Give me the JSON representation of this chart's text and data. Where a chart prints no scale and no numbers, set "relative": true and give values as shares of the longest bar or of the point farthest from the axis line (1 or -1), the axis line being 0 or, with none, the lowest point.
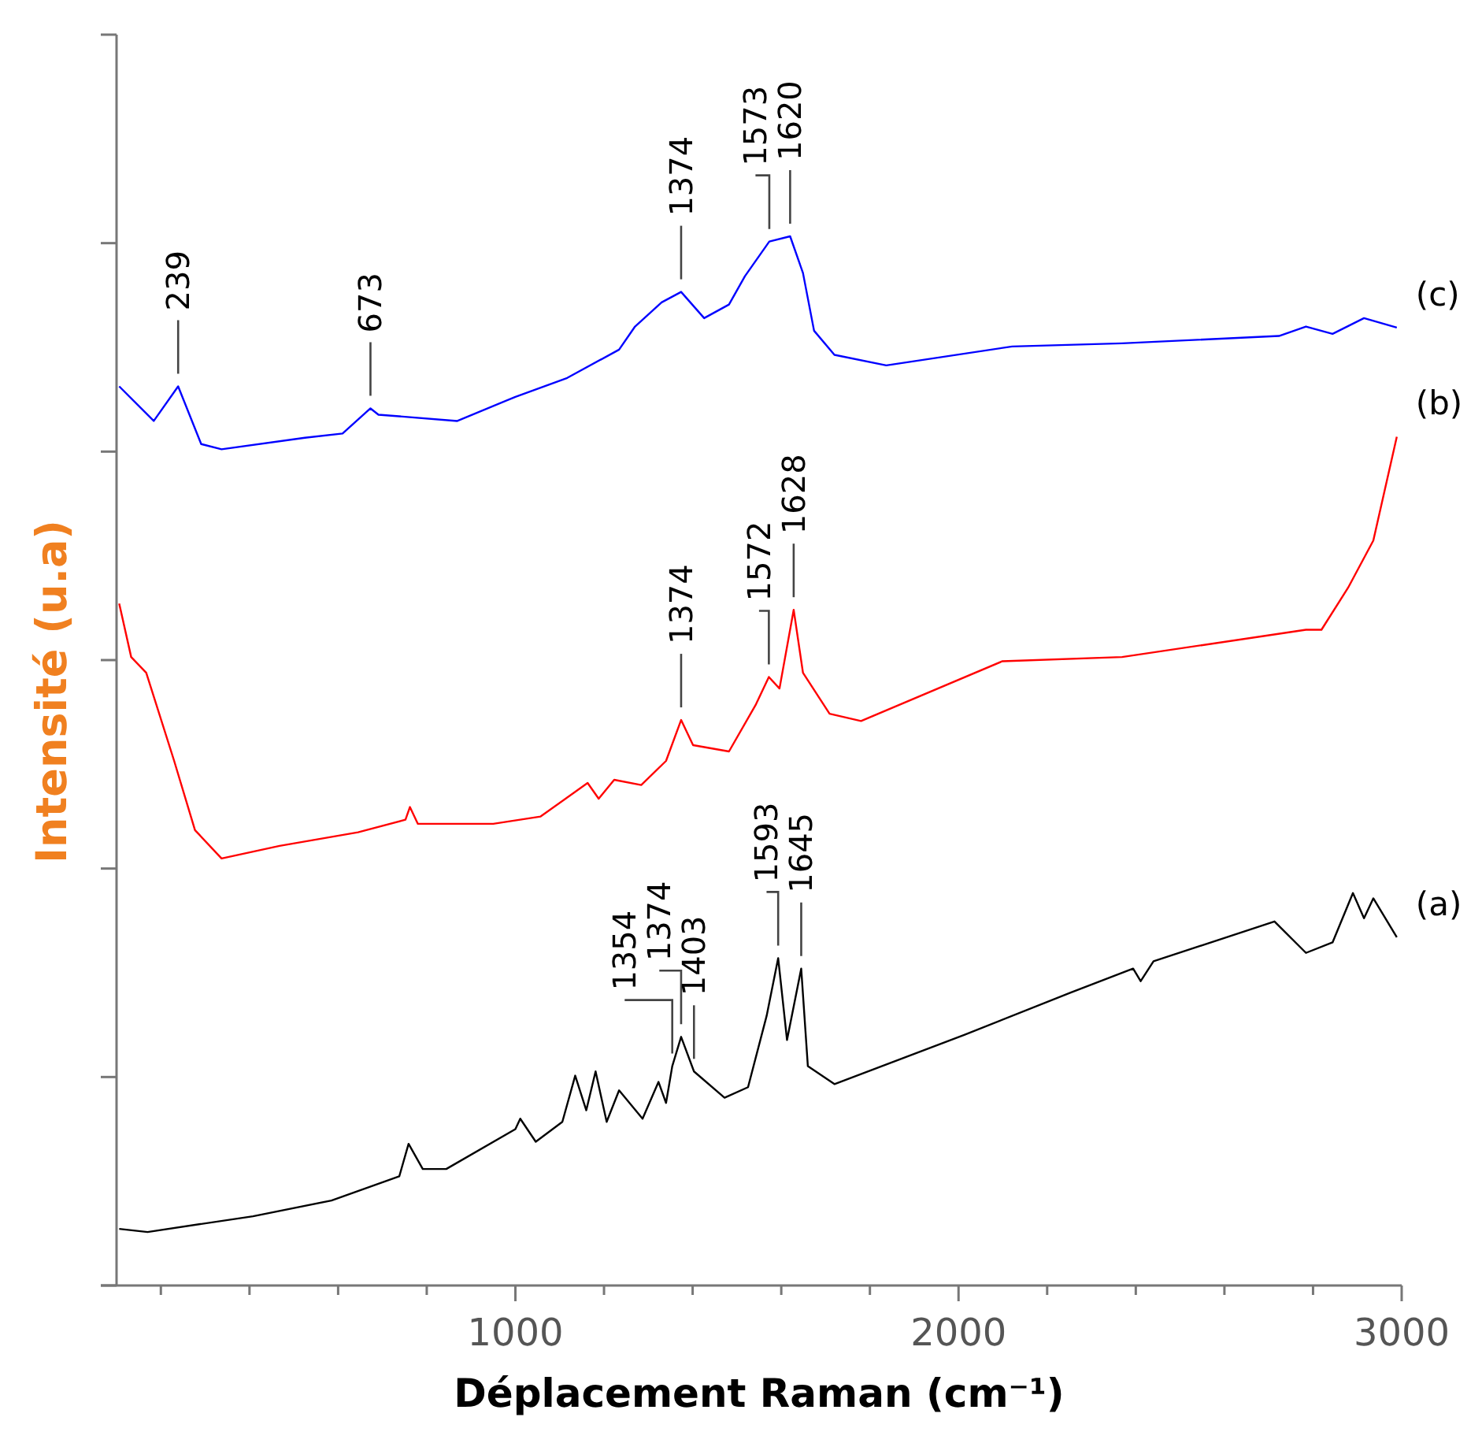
{
  "chart_data": {
    "type": "line",
    "relative": true,
    "xlabel": "Déplacement Raman (cm⁻¹)",
    "ylabel": "Intensité (u.a)",
    "xlim": [
      100,
      3000
    ],
    "xticks": [
      {
        "value": 200,
        "label": null
      },
      {
        "value": 400,
        "label": null
      },
      {
        "value": 600,
        "label": null
      },
      {
        "value": 800,
        "label": null
      },
      1000,
      {
        "value": 1200,
        "label": null
      },
      {
        "value": 1400,
        "label": null
      },
      {
        "value": 1600,
        "label": null
      },
      {
        "value": 1800,
        "label": null
      },
      2000,
      {
        "value": 2200,
        "label": null
      },
      {
        "value": 2400,
        "label": null
      },
      {
        "value": 2600,
        "label": null
      },
      {
        "value": 2800,
        "label": null
      },
      3000
    ],
    "grid": false,
    "marker": "none",
    "line_style": "solid",
    "series": [
      {
        "name": "(a)",
        "color": "#000000",
        "x": [
          106,
          170,
          408,
          585,
          738,
          759,
          791,
          844,
          1000,
          1011,
          1046,
          1106,
          1135,
          1160,
          1181,
          1206,
          1234,
          1287,
          1323,
          1340,
          1354,
          1374,
          1403,
          1472,
          1525,
          1567,
          1593,
          1613,
          1645,
          1660,
          1720,
          2014,
          2252,
          2394,
          2411,
          2440,
          2713,
          2784,
          2844,
          2890,
          2915,
          2936,
          2989
        ],
        "values": [
          0.054,
          0.051,
          0.066,
          0.081,
          0.104,
          0.135,
          0.111,
          0.111,
          0.149,
          0.159,
          0.137,
          0.156,
          0.2,
          0.167,
          0.204,
          0.156,
          0.186,
          0.159,
          0.194,
          0.174,
          0.209,
          0.237,
          0.204,
          0.179,
          0.189,
          0.257,
          0.312,
          0.234,
          0.302,
          0.209,
          0.192,
          0.239,
          0.279,
          0.302,
          0.29,
          0.309,
          0.347,
          0.317,
          0.327,
          0.374,
          0.35,
          0.369,
          0.332
        ]
      },
      {
        "name": "(b)",
        "color": "#ff0000",
        "x": [
          106,
          133,
          167,
          230,
          277,
          337,
          468,
          645,
          752,
          762,
          780,
          950,
          1057,
          1163,
          1188,
          1223,
          1284,
          1340,
          1374,
          1401,
          1482,
          1543,
          1572,
          1596,
          1628,
          1649,
          1709,
          1780,
          2099,
          2369,
          2784,
          2819,
          2879,
          2936,
          2989
        ],
        "values": [
          0.65,
          0.599,
          0.584,
          0.5,
          0.434,
          0.407,
          0.419,
          0.432,
          0.444,
          0.456,
          0.44,
          0.44,
          0.447,
          0.479,
          0.464,
          0.482,
          0.477,
          0.5,
          0.539,
          0.515,
          0.509,
          0.554,
          0.58,
          0.569,
          0.644,
          0.584,
          0.545,
          0.538,
          0.595,
          0.599,
          0.625,
          0.625,
          0.665,
          0.71,
          0.809
        ]
      },
      {
        "name": "(c)",
        "color": "#0000ff",
        "x": [
          106,
          184,
          239,
          291,
          337,
          525,
          610,
          673,
          691,
          869,
          1000,
          1117,
          1234,
          1270,
          1330,
          1374,
          1426,
          1482,
          1518,
          1573,
          1620,
          1649,
          1674,
          1720,
          1837,
          2121,
          2369,
          2723,
          2784,
          2844,
          2915,
          2989
        ],
        "values": [
          0.857,
          0.824,
          0.857,
          0.802,
          0.797,
          0.808,
          0.812,
          0.836,
          0.83,
          0.824,
          0.847,
          0.865,
          0.892,
          0.914,
          0.937,
          0.947,
          0.922,
          0.935,
          0.962,
          0.995,
          1.0,
          0.965,
          0.91,
          0.887,
          0.877,
          0.895,
          0.898,
          0.905,
          0.914,
          0.907,
          0.922,
          0.913
        ]
      }
    ],
    "annotations": [
      {
        "text": "1354",
        "x": 1354,
        "y": 0.209
      },
      {
        "text": "1374",
        "x": 1374,
        "y": 0.237
      },
      {
        "text": "1403",
        "x": 1403,
        "y": 0.204
      },
      {
        "text": "1593",
        "x": 1593,
        "y": 0.312
      },
      {
        "text": "1645",
        "x": 1645,
        "y": 0.302
      },
      {
        "text": "1374",
        "x": 1374,
        "y": 0.539
      },
      {
        "text": "1572",
        "x": 1572,
        "y": 0.58
      },
      {
        "text": "1628",
        "x": 1628,
        "y": 0.644
      },
      {
        "text": "239",
        "x": 239,
        "y": 0.857
      },
      {
        "text": "673",
        "x": 673,
        "y": 0.836
      },
      {
        "text": "1374",
        "x": 1374,
        "y": 0.947
      },
      {
        "text": "1573",
        "x": 1573,
        "y": 0.995
      },
      {
        "text": "1620",
        "x": 1620,
        "y": 1.0
      }
    ]
  }
}
